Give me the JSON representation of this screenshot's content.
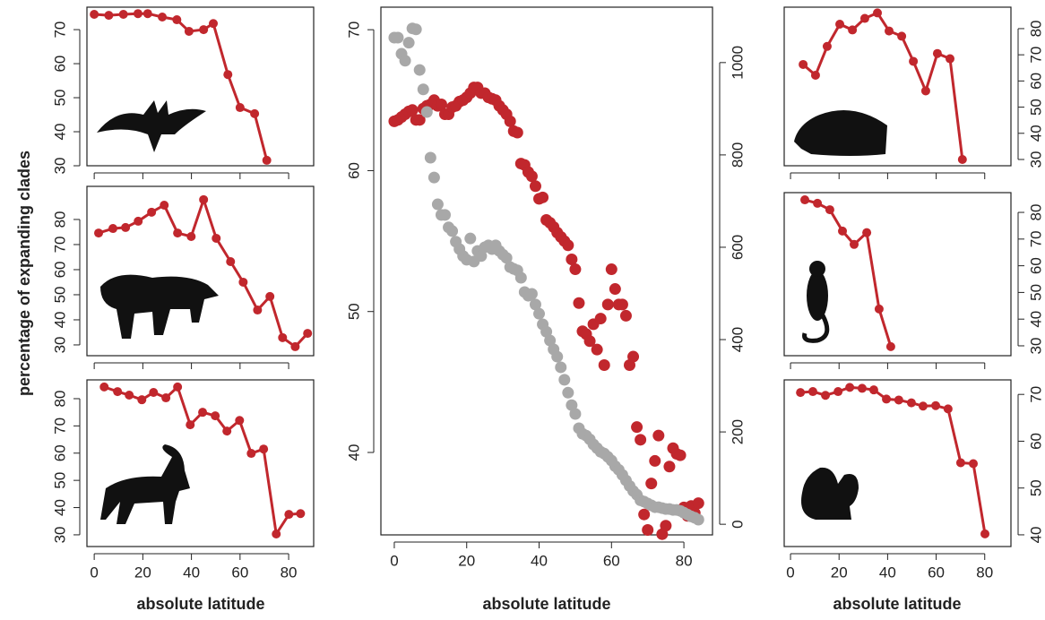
{
  "chart_data": [
    {
      "type": "line",
      "ylabel": "percentage of expanding clades",
      "x": [
        0,
        6,
        12,
        18,
        22,
        28,
        34,
        39,
        45,
        49,
        55,
        60,
        66,
        71
      ],
      "values": [
        74.5,
        74.2,
        74.5,
        74.7,
        74.7,
        73.7,
        72.9,
        69.5,
        70,
        71.8,
        56.8,
        47.1,
        45.3,
        31.6
      ],
      "color": "#c1272d",
      "xlim": [
        -3,
        90.3
      ],
      "ylim": [
        30,
        76.6
      ],
      "xticks": [
        0,
        20,
        40,
        60,
        80
      ],
      "yticks": [
        30,
        40,
        50,
        60,
        70
      ],
      "y_axis": "left",
      "xtick_labels": false
    },
    {
      "type": "line",
      "x": [
        1.8,
        7.7,
        12.9,
        18.1,
        23.6,
        28.8,
        34.3,
        39.9,
        45,
        50.2,
        56.1,
        61.3,
        67.2,
        72.3,
        77.5,
        82.7,
        87.8
      ],
      "values": [
        74.6,
        76.4,
        76.8,
        79.3,
        82.9,
        85.7,
        74.6,
        73.2,
        87.9,
        72.5,
        63.2,
        55,
        43.9,
        49.3,
        32.9,
        29.3,
        34.6
      ],
      "color": "#c1272d",
      "xlim": [
        -3,
        90.3
      ],
      "ylim": [
        25.7,
        93.2
      ],
      "xticks": [
        0,
        20,
        40,
        60,
        80
      ],
      "yticks": [
        30,
        40,
        50,
        60,
        70,
        80
      ],
      "y_axis": "left",
      "xtick_labels": false
    },
    {
      "type": "line",
      "xlabel": "absolute latitude",
      "x": [
        4.1,
        9.6,
        14.4,
        19.6,
        24.4,
        29.5,
        34.3,
        39.5,
        44.6,
        49.8,
        54.6,
        59.8,
        64.6,
        69.7,
        74.9,
        80.1,
        84.9
      ],
      "values": [
        84.3,
        82.6,
        81.3,
        79.6,
        82.3,
        80.3,
        84.3,
        70.4,
        75,
        73.7,
        68.1,
        72,
        59.9,
        61.5,
        30.3,
        37.5,
        37.8
      ],
      "color": "#c1272d",
      "xlim": [
        -3,
        90.3
      ],
      "ylim": [
        25.7,
        86.9
      ],
      "xticks": [
        0,
        20,
        40,
        60,
        80
      ],
      "yticks": [
        30,
        40,
        50,
        60,
        70,
        80
      ],
      "y_axis": "left",
      "xtick_labels": true
    },
    {
      "type": "scatter",
      "xlabel": "absolute latitude",
      "x": [
        0,
        1,
        2,
        3,
        4,
        5,
        6,
        7,
        8,
        9,
        10,
        11,
        12,
        13,
        14,
        15,
        16,
        17,
        18,
        19,
        20,
        21,
        22,
        23,
        24,
        25,
        26,
        27,
        28,
        29,
        30,
        31,
        32,
        33,
        34,
        35,
        36,
        37,
        38,
        39,
        40,
        41,
        42,
        43,
        44,
        45,
        46,
        47,
        48,
        49,
        50,
        51,
        52,
        53,
        54,
        55,
        56,
        57,
        58,
        59,
        60,
        61,
        62,
        63,
        64,
        65,
        66,
        67,
        68,
        69,
        70,
        71,
        72,
        73,
        74,
        75,
        76,
        77,
        78,
        79,
        80,
        81,
        82,
        83,
        84
      ],
      "series": [
        {
          "color": "#c1272d",
          "values": [
            63.5,
            63.6,
            63.8,
            64.0,
            64.2,
            64.3,
            63.6,
            63.6,
            64.4,
            64.6,
            64.7,
            65.0,
            64.6,
            64.7,
            64.0,
            64.0,
            64.5,
            64.6,
            64.9,
            65.0,
            65.2,
            65.5,
            65.9,
            65.9,
            65.5,
            65.5,
            65.2,
            65.1,
            65.0,
            64.6,
            64.3,
            64.0,
            63.5,
            62.8,
            62.7,
            60.5,
            60.4,
            59.9,
            59.6,
            58.9,
            58.0,
            58.1,
            56.5,
            56.3,
            56.0,
            55.6,
            55.3,
            55.0,
            54.7,
            53.7,
            53.0,
            50.6,
            48.6,
            48.4,
            47.9,
            49.1,
            47.3,
            49.5,
            46.2,
            50.5,
            53.0,
            51.6,
            50.5,
            50.5,
            49.7,
            46.2,
            46.8,
            41.8,
            40.9,
            35.6,
            34.5,
            37.8,
            39.4,
            41.2,
            34.2,
            34.8,
            39.0,
            40.3,
            39.9,
            39.8,
            36.1,
            35.5,
            36.2,
            35.7,
            36.4
          ]
        },
        {
          "color": "#a8a8a8",
          "axis": "y2",
          "values": [
            1054,
            1054,
            1019,
            1004,
            1043,
            1074,
            1072,
            984,
            942,
            893,
            794,
            751,
            693,
            670,
            670,
            643,
            635,
            612,
            596,
            581,
            573,
            619,
            569,
            592,
            581,
            600,
            604,
            596,
            604,
            592,
            584,
            577,
            557,
            553,
            550,
            534,
            503,
            495,
            499,
            476,
            456,
            433,
            417,
            398,
            379,
            363,
            340,
            313,
            285,
            258,
            239,
            208,
            196,
            192,
            184,
            173,
            165,
            157,
            153,
            146,
            138,
            126,
            118,
            107,
            95,
            83,
            72,
            64,
            52,
            49,
            45,
            41,
            37,
            37,
            35,
            33,
            33,
            31,
            31,
            29,
            25,
            21,
            17,
            14,
            10
          ]
        }
      ],
      "xlim": [
        -3.7,
        87.9
      ],
      "ylim": [
        34.15,
        71.6
      ],
      "y2lim": [
        -23,
        1120
      ],
      "xticks": [
        0,
        20,
        40,
        60,
        80
      ],
      "yticks": [
        40,
        50,
        60,
        70
      ],
      "y2ticks": [
        0,
        200,
        400,
        600,
        800,
        1000
      ]
    },
    {
      "type": "line",
      "x": [
        5.2,
        10.3,
        15.1,
        20.3,
        25.5,
        30.6,
        35.8,
        40.6,
        45.8,
        50.6,
        55.7,
        60.5,
        65.7,
        70.8
      ],
      "values": [
        66.3,
        62.2,
        73.2,
        81.7,
        79.5,
        83.9,
        86,
        79.1,
        77.1,
        67.5,
        56.2,
        70.5,
        68.5,
        30
      ],
      "color": "#c1272d",
      "xlim": [
        -2.6,
        90.8
      ],
      "ylim": [
        27.6,
        88.2
      ],
      "xticks": [
        0,
        20,
        40,
        60,
        80
      ],
      "yticks": [
        30,
        40,
        50,
        60,
        70,
        80
      ],
      "y_axis": "right",
      "xtick_labels": false
    },
    {
      "type": "line",
      "x": [
        5.9,
        11.1,
        16.2,
        21.4,
        26.2,
        31.4,
        36.5,
        41.3
      ],
      "values": [
        84.7,
        83.4,
        81,
        73,
        68,
        72.4,
        43.8,
        29.7
      ],
      "color": "#c1272d",
      "xlim": [
        -2.6,
        90.8
      ],
      "ylim": [
        26.3,
        87.4
      ],
      "xticks": [
        0,
        20,
        40,
        60,
        80
      ],
      "yticks": [
        30,
        40,
        50,
        60,
        70,
        80
      ],
      "y_axis": "right",
      "xtick_labels": false
    },
    {
      "type": "line",
      "xlabel": "absolute latitude",
      "x": [
        4.1,
        9.2,
        14.4,
        19.6,
        24.4,
        29.5,
        34.3,
        39.5,
        44.6,
        49.8,
        54.6,
        59.8,
        64.9,
        70.1,
        75.3,
        80.1
      ],
      "values": [
        70.4,
        70.6,
        69.8,
        70.6,
        71.5,
        71.3,
        70.96,
        69,
        68.8,
        68.2,
        67.5,
        67.6,
        66.9,
        55.4,
        55.2,
        40.2
      ],
      "color": "#c1272d",
      "xlim": [
        -2.6,
        90.8
      ],
      "ylim": [
        37.5,
        73.1
      ],
      "xticks": [
        0,
        20,
        40,
        60,
        80
      ],
      "yticks": [
        40,
        50,
        60,
        70
      ],
      "y_axis": "right",
      "xtick_labels": true
    }
  ]
}
